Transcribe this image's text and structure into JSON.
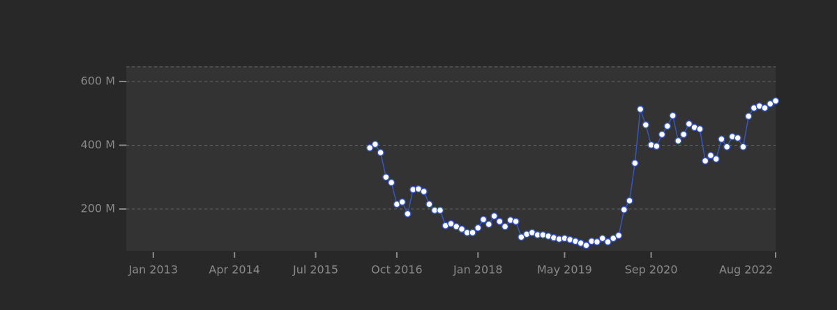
{
  "chart_data": {
    "type": "line",
    "x": [
      "2016-05",
      "2016-06",
      "2016-07",
      "2016-08",
      "2016-09",
      "2016-10",
      "2016-11",
      "2016-12",
      "2017-01",
      "2017-02",
      "2017-03",
      "2017-04",
      "2017-05",
      "2017-06",
      "2017-07",
      "2017-08",
      "2017-09",
      "2017-10",
      "2017-11",
      "2017-12",
      "2018-01",
      "2018-02",
      "2018-03",
      "2018-04",
      "2018-05",
      "2018-06",
      "2018-07",
      "2018-08",
      "2018-09",
      "2018-10",
      "2018-11",
      "2018-12",
      "2019-01",
      "2019-02",
      "2019-03",
      "2019-04",
      "2019-05",
      "2019-06",
      "2019-07",
      "2019-08",
      "2019-09",
      "2019-10",
      "2019-11",
      "2019-12",
      "2020-01",
      "2020-02",
      "2020-03",
      "2020-04",
      "2020-05",
      "2020-06",
      "2020-07",
      "2020-08",
      "2020-09",
      "2020-10",
      "2020-11",
      "2020-12",
      "2021-01",
      "2021-02",
      "2021-03",
      "2021-04",
      "2021-05",
      "2021-06",
      "2021-07",
      "2021-08",
      "2021-09",
      "2021-10",
      "2021-11",
      "2021-12",
      "2022-01",
      "2022-02",
      "2022-03",
      "2022-04",
      "2022-05",
      "2022-06",
      "2022-07",
      "2022-08"
    ],
    "values": [
      392,
      403,
      377,
      300,
      283,
      215,
      222,
      185,
      261,
      263,
      255,
      215,
      196,
      196,
      148,
      154,
      145,
      137,
      126,
      126,
      141,
      167,
      152,
      178,
      161,
      145,
      165,
      161,
      112,
      121,
      126,
      119,
      119,
      115,
      110,
      106,
      108,
      104,
      99,
      93,
      86,
      99,
      97,
      108,
      97,
      108,
      117,
      198,
      226,
      344,
      513,
      464,
      401,
      397,
      434,
      460,
      493,
      414,
      434,
      467,
      456,
      451,
      351,
      368,
      357,
      419,
      395,
      427,
      423,
      395,
      491,
      517,
      523,
      517,
      530,
      539
    ],
    "color": "#3556c4",
    "xlim": [
      "2012-08",
      "2022-08"
    ],
    "xticks": [
      {
        "value": "2013-01",
        "label": "Jan 2013"
      },
      {
        "value": "2014-04",
        "label": "Apr 2014"
      },
      {
        "value": "2015-07",
        "label": "Jul 2015"
      },
      {
        "value": "2016-10",
        "label": "Oct 2016"
      },
      {
        "value": "2018-01",
        "label": "Jan 2018"
      },
      {
        "value": "2019-05",
        "label": "May 2019"
      },
      {
        "value": "2020-09",
        "label": "Sep 2020"
      },
      {
        "value": "2022-08",
        "label": "Aug 2022"
      }
    ],
    "ylim": [
      69,
      648
    ],
    "yticks": [
      {
        "value": 200,
        "label": "200 M"
      },
      {
        "value": 400,
        "label": "400 M"
      },
      {
        "value": 600,
        "label": "600 M"
      }
    ],
    "grid": true
  }
}
